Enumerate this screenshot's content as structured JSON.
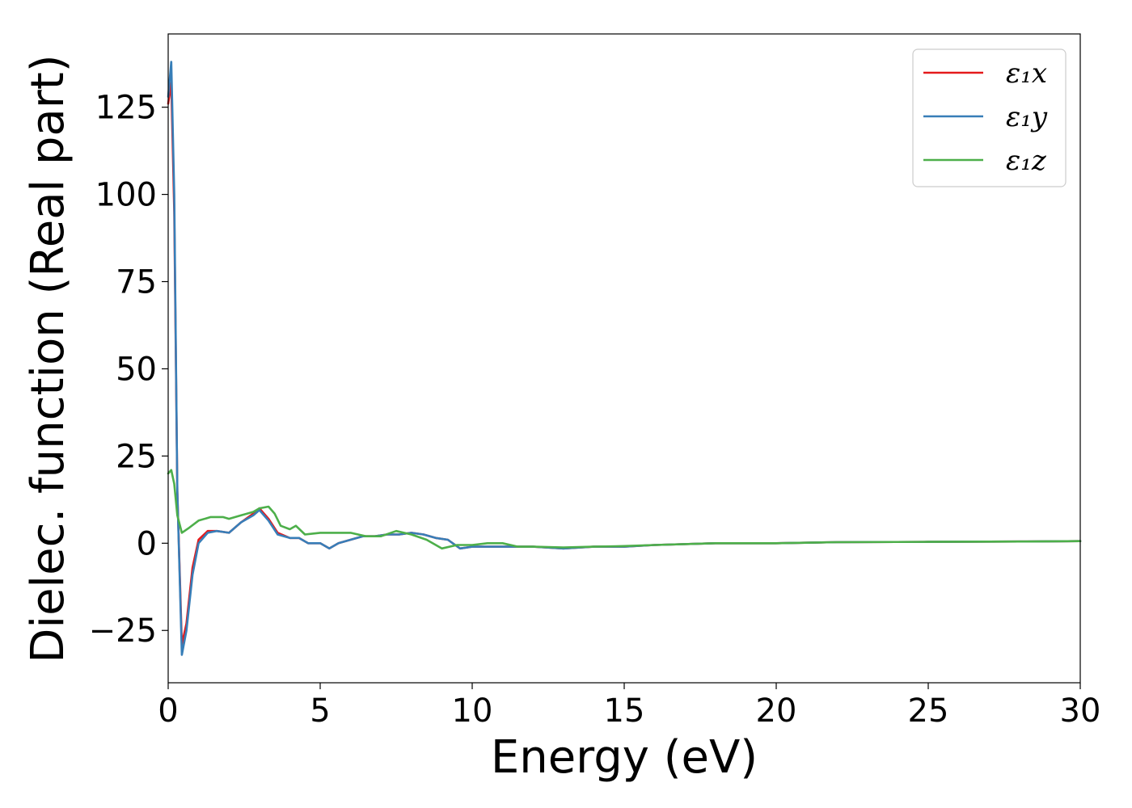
{
  "chart_data": {
    "type": "line",
    "xlabel": "Energy (eV)",
    "ylabel": "Dielec. function (Real part)",
    "xlim": [
      0,
      30
    ],
    "ylim": [
      -40,
      146
    ],
    "xticks": [
      0,
      5,
      10,
      15,
      20,
      25,
      30
    ],
    "xtick_labels": [
      "0",
      "5",
      "10",
      "15",
      "20",
      "25",
      "30"
    ],
    "yticks": [
      -25,
      0,
      25,
      50,
      75,
      100,
      125
    ],
    "ytick_labels": [
      "−25",
      "0",
      "25",
      "50",
      "75",
      "100",
      "125"
    ],
    "grid": false,
    "legend_position": "top-right",
    "series": [
      {
        "name": "ε₁x",
        "color": "#e41a1c",
        "x": [
          0,
          0.1,
          0.2,
          0.3,
          0.45,
          0.6,
          0.8,
          1.0,
          1.3,
          1.6,
          2.0,
          2.4,
          2.8,
          3.0,
          3.3,
          3.6,
          4.0,
          4.3,
          4.6,
          5.0,
          5.3,
          5.6,
          6.0,
          6.4,
          6.8,
          7.2,
          7.6,
          8.0,
          8.4,
          8.8,
          9.2,
          9.6,
          10.0,
          10.5,
          11.0,
          12.0,
          13.0,
          14.0,
          15.0,
          16.0,
          18.0,
          20.0,
          22.0,
          25.0,
          28.0,
          30.0
        ],
        "values": [
          126,
          132,
          95,
          15,
          -29,
          -23,
          -7,
          1,
          3.5,
          3.5,
          3,
          6,
          8.5,
          10,
          7,
          3,
          1.5,
          1.5,
          0,
          0,
          -1.5,
          0,
          1,
          2,
          2,
          2.5,
          2.5,
          3,
          2.5,
          1.5,
          1,
          -1.5,
          -1,
          -1,
          -1,
          -1,
          -1.5,
          -1,
          -1,
          -0.5,
          0,
          0,
          0.3,
          0.4,
          0.5,
          0.6
        ]
      },
      {
        "name": "ε₁y",
        "color": "#377eb8",
        "x": [
          0,
          0.1,
          0.2,
          0.3,
          0.45,
          0.6,
          0.8,
          1.0,
          1.3,
          1.6,
          2.0,
          2.4,
          2.8,
          3.0,
          3.3,
          3.6,
          4.0,
          4.3,
          4.6,
          5.0,
          5.3,
          5.6,
          6.0,
          6.4,
          6.8,
          7.2,
          7.6,
          8.0,
          8.4,
          8.8,
          9.2,
          9.6,
          10.0,
          10.5,
          11.0,
          12.0,
          13.0,
          14.0,
          15.0,
          16.0,
          18.0,
          20.0,
          22.0,
          25.0,
          28.0,
          30.0
        ],
        "values": [
          128,
          138,
          100,
          15,
          -32,
          -25,
          -9,
          0,
          3,
          3.5,
          3,
          6,
          8,
          9.5,
          6.5,
          2.5,
          1.5,
          1.5,
          0,
          0,
          -1.5,
          0,
          1,
          2,
          2,
          2.5,
          2.5,
          3,
          2.5,
          1.5,
          1,
          -1.5,
          -1,
          -1,
          -1,
          -1,
          -1.5,
          -1,
          -1,
          -0.5,
          0,
          0,
          0.3,
          0.4,
          0.5,
          0.6
        ]
      },
      {
        "name": "ε₁z",
        "color": "#4daf4a",
        "x": [
          0,
          0.1,
          0.2,
          0.3,
          0.45,
          0.7,
          1.0,
          1.4,
          1.8,
          2.0,
          2.4,
          2.8,
          3.0,
          3.3,
          3.5,
          3.7,
          4.0,
          4.2,
          4.5,
          5.0,
          5.5,
          6.0,
          6.5,
          7.0,
          7.5,
          8.0,
          8.5,
          9.0,
          9.5,
          10.0,
          10.5,
          11.0,
          11.5,
          12.0,
          13.0,
          14.0,
          15.0,
          16.0,
          18.0,
          20.0,
          22.0,
          25.0,
          28.0,
          30.0
        ],
        "values": [
          20,
          21,
          17,
          8,
          3,
          4.5,
          6.5,
          7.5,
          7.5,
          7,
          8,
          9,
          10,
          10.5,
          8.5,
          5,
          4,
          5,
          2.5,
          3,
          3,
          3,
          2,
          2,
          3.5,
          2.5,
          1,
          -1.5,
          -0.5,
          -0.5,
          0,
          0,
          -1,
          -1,
          -1.2,
          -1,
          -0.8,
          -0.5,
          0,
          0,
          0.3,
          0.4,
          0.5,
          0.6
        ]
      }
    ]
  }
}
